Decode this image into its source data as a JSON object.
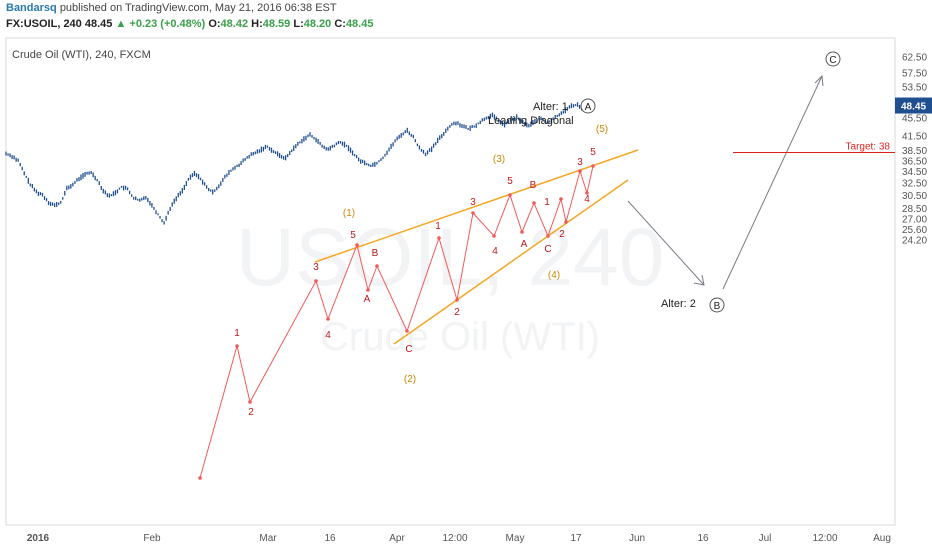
{
  "header": {
    "author": "Bandarsq",
    "published": "published on TradingView.com, May 21, 2016 06:38 EST",
    "symbol": "FX:USOIL, 240",
    "last": "48.45",
    "change": "+0.23 (+0.48%)",
    "open_label": "O:",
    "open": "48.42",
    "high_label": "H:",
    "high": "48.59",
    "low_label": "L:",
    "low": "48.20",
    "close_label": "C:",
    "close": "48.45"
  },
  "chart_data": {
    "type": "line",
    "title": "Crude Oil (WTI), 240, FXCM",
    "watermark_symbol": "USOIL, 240",
    "watermark_name": "Crude Oil (WTI)",
    "x_ticks": [
      "2016",
      "Feb",
      "Mar",
      "16",
      "Apr",
      "12:00",
      "May",
      "17",
      "Jun",
      "16",
      "Jul",
      "12:00",
      "Aug"
    ],
    "y_ticks": [
      62.5,
      57.5,
      53.5,
      49.5,
      45.5,
      41.5,
      38.5,
      36.5,
      34.5,
      32.5,
      30.5,
      28.5,
      27.0,
      25.6,
      24.2
    ],
    "last_price_label": "48.45",
    "target_label": "Target: 38",
    "target_value": 38.0,
    "colors": {
      "price": "#1f4f8f",
      "wave": "#f25a5a",
      "channel": "#f5a623",
      "minor_label": "#c0171b",
      "major_label": "#c98a06",
      "arrow": "#787b86",
      "target": "#e02020",
      "last_price_bg": "#1f4f8f"
    },
    "series": [
      {
        "values": [
          [
            0,
            37.8
          ],
          [
            1,
            37.3
          ],
          [
            2,
            36.4
          ],
          [
            3,
            34.1
          ],
          [
            4,
            32.2
          ],
          [
            5,
            31.0
          ],
          [
            6,
            30.5
          ],
          [
            7,
            29.4
          ],
          [
            8,
            28.9
          ],
          [
            9,
            29.3
          ],
          [
            10,
            31.5
          ],
          [
            11,
            32.2
          ],
          [
            12,
            33.2
          ],
          [
            13,
            33.9
          ],
          [
            14,
            34.3
          ],
          [
            15,
            33.0
          ],
          [
            16,
            31.2
          ],
          [
            17,
            30.3
          ],
          [
            18,
            30.9
          ],
          [
            19,
            31.8
          ],
          [
            20,
            31.4
          ],
          [
            21,
            30.0
          ],
          [
            22,
            29.6
          ],
          [
            23,
            30.2
          ],
          [
            24,
            28.9
          ],
          [
            25,
            27.6
          ],
          [
            26,
            26.4
          ],
          [
            27,
            28.5
          ],
          [
            28,
            30.0
          ],
          [
            29,
            31.2
          ],
          [
            30,
            33.0
          ],
          [
            31,
            34.1
          ],
          [
            32,
            33.2
          ],
          [
            33,
            31.7
          ],
          [
            34,
            30.9
          ],
          [
            35,
            32.0
          ],
          [
            36,
            33.4
          ],
          [
            37,
            34.6
          ],
          [
            38,
            35.4
          ],
          [
            39,
            36.3
          ],
          [
            40,
            37.3
          ],
          [
            41,
            37.9
          ],
          [
            42,
            38.6
          ],
          [
            43,
            39.2
          ],
          [
            44,
            38.2
          ],
          [
            45,
            37.4
          ],
          [
            46,
            36.9
          ],
          [
            47,
            38.4
          ],
          [
            48,
            39.7
          ],
          [
            49,
            40.8
          ],
          [
            50,
            41.6
          ],
          [
            51,
            40.7
          ],
          [
            52,
            39.2
          ],
          [
            53,
            38.6
          ],
          [
            54,
            39.4
          ],
          [
            55,
            40.1
          ],
          [
            56,
            39.3
          ],
          [
            57,
            38.0
          ],
          [
            58,
            36.6
          ],
          [
            59,
            36.0
          ],
          [
            60,
            35.5
          ],
          [
            61,
            36.0
          ],
          [
            62,
            37.0
          ],
          [
            63,
            38.6
          ],
          [
            64,
            40.3
          ],
          [
            65,
            41.6
          ],
          [
            66,
            42.6
          ],
          [
            67,
            41.1
          ],
          [
            68,
            38.9
          ],
          [
            69,
            37.8
          ],
          [
            70,
            38.6
          ],
          [
            71,
            40.4
          ],
          [
            72,
            42.0
          ],
          [
            73,
            43.6
          ],
          [
            74,
            44.4
          ],
          [
            75,
            43.7
          ],
          [
            76,
            42.9
          ],
          [
            77,
            43.5
          ],
          [
            78,
            44.5
          ],
          [
            79,
            45.5
          ],
          [
            80,
            46.0
          ],
          [
            81,
            44.8
          ],
          [
            82,
            43.9
          ],
          [
            83,
            44.9
          ],
          [
            84,
            45.6
          ],
          [
            85,
            44.4
          ],
          [
            86,
            43.6
          ],
          [
            87,
            44.7
          ],
          [
            88,
            45.3
          ],
          [
            89,
            44.3
          ],
          [
            90,
            45.2
          ],
          [
            91,
            46.3
          ],
          [
            92,
            47.3
          ],
          [
            93,
            48.3
          ],
          [
            94,
            48.7
          ],
          [
            95,
            47.5
          ],
          [
            96,
            48.9
          ],
          [
            97,
            48.45
          ]
        ]
      }
    ],
    "annotations": {
      "minor": [
        "1",
        "2",
        "3",
        "4",
        "5",
        "A",
        "B",
        "C",
        "1",
        "2",
        "3",
        "4",
        "5",
        "A",
        "B",
        "C",
        "1",
        "2",
        "3",
        "4",
        "5",
        "A",
        "B",
        "C",
        "1",
        "2",
        "3",
        "4",
        "5"
      ],
      "major": [
        "(1)",
        "(2)",
        "(3)",
        "(4)",
        "(5)"
      ],
      "alter1": "Alter: 1",
      "leading": "Leading Diagonal",
      "alter2": "Alter: 2",
      "circle_a": "A",
      "circle_b": "B",
      "circle_c": "C"
    }
  }
}
